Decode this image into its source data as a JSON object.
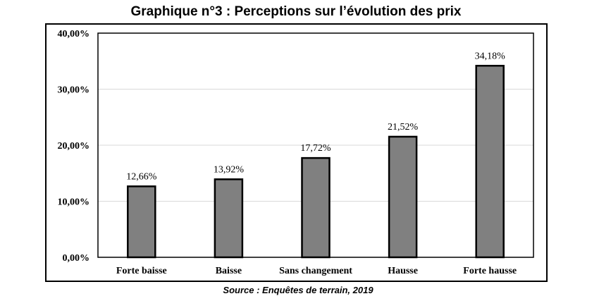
{
  "chart_data": {
    "type": "bar",
    "title": "Graphique n°3 : Perceptions sur l’évolution des prix",
    "source": "Source : Enquêtes de terrain, 2019",
    "categories": [
      "Forte baisse",
      "Baisse",
      "Sans changement",
      "Hausse",
      "Forte hausse"
    ],
    "values": [
      12.66,
      13.92,
      17.72,
      21.52,
      34.18
    ],
    "data_labels": [
      "12,66%",
      "13,92%",
      "17,72%",
      "21,52%",
      "34,18%"
    ],
    "yticks": [
      "0,00%",
      "10,00%",
      "20,00%",
      "30,00%",
      "40,00%"
    ],
    "ylim": [
      0,
      40
    ],
    "xlabel": "",
    "ylabel": "",
    "grid": true,
    "bar_color": "#808080",
    "bar_edge_color": "#000000"
  }
}
